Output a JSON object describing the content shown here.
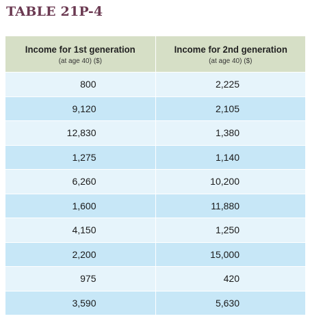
{
  "title": "TABLE 21P-4",
  "headers": [
    {
      "label": "Income for 1st generation",
      "sub": "(at age 40) ($)"
    },
    {
      "label": "Income for 2nd generation",
      "sub": "(at age 40) ($)"
    }
  ],
  "rows": [
    [
      "800",
      "2,225"
    ],
    [
      "9,120",
      "2,105"
    ],
    [
      "12,830",
      "1,380"
    ],
    [
      "1,275",
      "1,140"
    ],
    [
      "6,260",
      "10,200"
    ],
    [
      "1,600",
      "11,880"
    ],
    [
      "4,150",
      "1,250"
    ],
    [
      "2,200",
      "15,000"
    ],
    [
      "975",
      "420"
    ],
    [
      "3,590",
      "5,630"
    ]
  ],
  "colors": {
    "title": "#6b3a52",
    "header_bg": "#d6dfc6",
    "row_light": "#e6f4fb",
    "row_dark": "#c7e7f7"
  },
  "chart_data": {
    "type": "table",
    "title": "TABLE 21P-4",
    "columns": [
      "Income for 1st generation (at age 40) ($)",
      "Income for 2nd generation (at age 40) ($)"
    ],
    "rows": [
      [
        800,
        2225
      ],
      [
        9120,
        2105
      ],
      [
        12830,
        1380
      ],
      [
        1275,
        1140
      ],
      [
        6260,
        10200
      ],
      [
        1600,
        11880
      ],
      [
        4150,
        1250
      ],
      [
        2200,
        15000
      ],
      [
        975,
        420
      ],
      [
        3590,
        5630
      ]
    ]
  }
}
